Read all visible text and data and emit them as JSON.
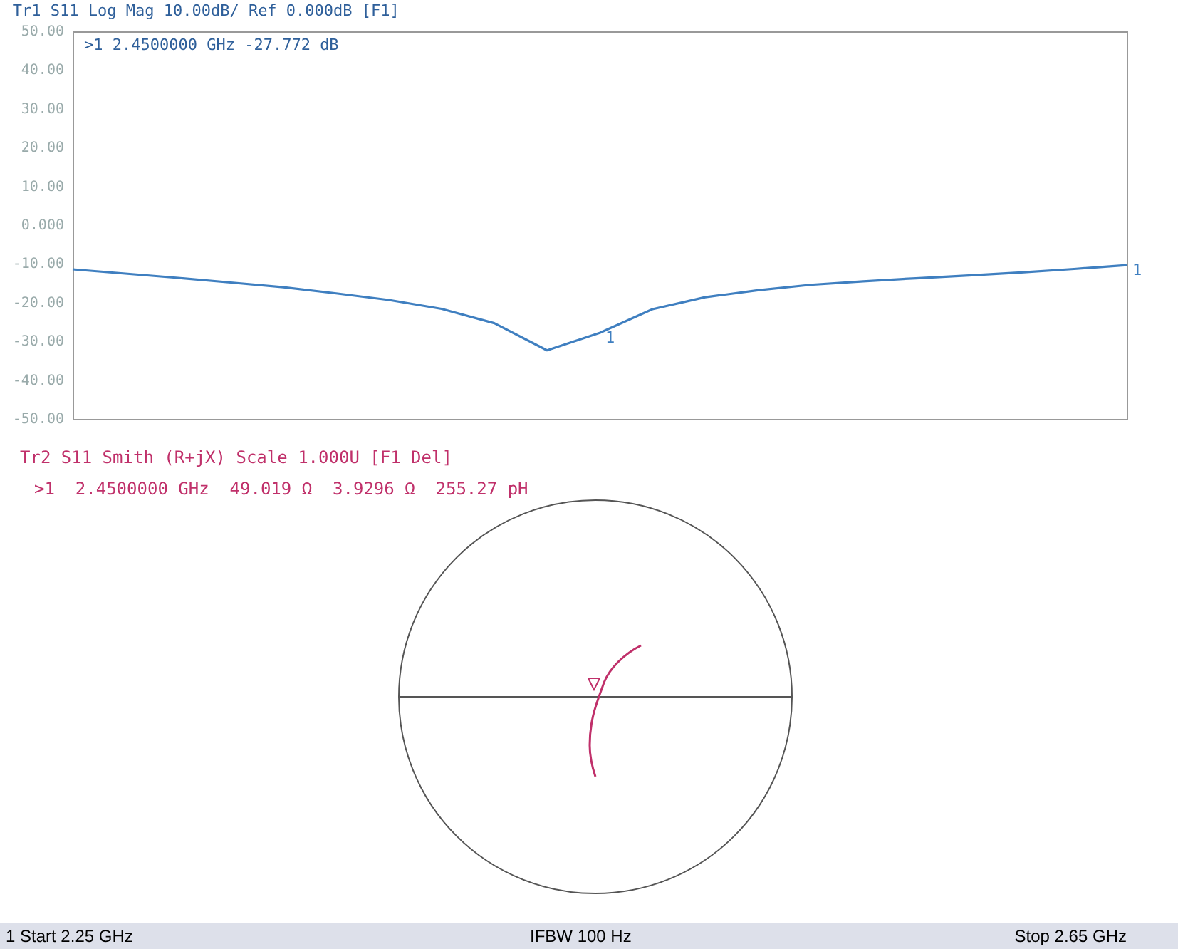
{
  "chart_data": [
    {
      "type": "line",
      "title": "Tr1 S11 Log Mag 10.00dB/ Ref 0.000dB [F1]",
      "categories": [
        null,
        null,
        null,
        null,
        null,
        null,
        null,
        null,
        null,
        null,
        null,
        null,
        null,
        null,
        null,
        null,
        null,
        null,
        null,
        null,
        null
      ],
      "series": [
        {
          "color": "#3f7fc0",
          "values": [
            -11.4,
            -12.5,
            -13.6,
            -14.8,
            -16,
            -17.6,
            -19.3,
            -21.6,
            -25.3,
            -32.3,
            -27.8,
            -21.7,
            -18.6,
            -16.8,
            -15.4,
            -14.5,
            -13.7,
            -13,
            -12.2,
            -11.3,
            -10.3
          ]
        }
      ],
      "ylim": [
        -50,
        50
      ],
      "yticks": [
        {
          "value": -50,
          "label": "-50.00"
        },
        {
          "value": -40,
          "label": "-40.00"
        },
        {
          "value": -30,
          "label": "-30.00"
        },
        {
          "value": -20,
          "label": "-20.00"
        },
        {
          "value": -10,
          "label": "-10.00"
        },
        {
          "value": 0,
          "label": "0.000"
        },
        {
          "value": 10,
          "label": "10.00"
        },
        {
          "value": 20,
          "label": "20.00"
        },
        {
          "value": 30,
          "label": "30.00"
        },
        {
          "value": 40,
          "label": "40.00"
        },
        {
          "value": 50,
          "label": "50.00"
        }
      ],
      "tick_labels": "y",
      "annotations": [
        ">1  2.4500000 GHz -27.772 dB",
        "1",
        "1",
        "1 Start 2.25 GHz",
        "IFBW 100 Hz",
        "Stop 2.65 GHz"
      ]
    },
    {
      "type": "other",
      "title": "Tr2 S11 Smith (R+jX) Scale 1.000U [F1 Del]",
      "annotations": [
        ">1  2.4500000 GHz  49.019 Ω  3.9296 Ω  255.27 pH"
      ]
    }
  ]
}
